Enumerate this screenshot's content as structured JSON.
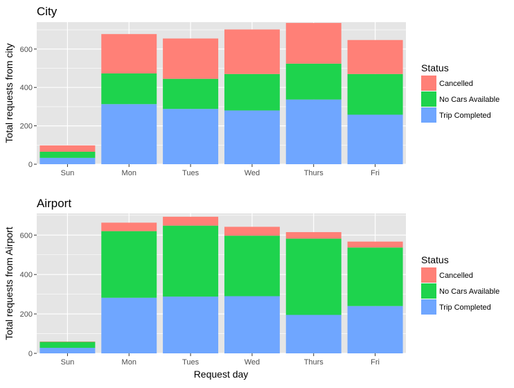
{
  "figure": {
    "xlabel": "Request day"
  },
  "colors": {
    "panel_bg": "#E5E5E5",
    "grid": "#FFFFFF",
    "text": "#000000",
    "tick_text": "#4D4D4D",
    "tick_mark": "#333333"
  },
  "chart_data": [
    {
      "type": "bar",
      "stacked": true,
      "title": "City",
      "xlabel": "",
      "ylabel": "Total requests from city",
      "categories": [
        "Sun",
        "Mon",
        "Tues",
        "Wed",
        "Thurs",
        "Fri"
      ],
      "ylim": [
        0,
        740
      ],
      "yticks": [
        0,
        200,
        400,
        600
      ],
      "grid": true,
      "legend": {
        "title": "Status",
        "position": "right"
      },
      "series": [
        {
          "name": "Trip Completed",
          "color": "#6FA6FF",
          "values": [
            33,
            313,
            288,
            280,
            337,
            258
          ]
        },
        {
          "name": "No Cars Available",
          "color": "#1ED34D",
          "values": [
            32,
            160,
            157,
            190,
            187,
            212
          ]
        },
        {
          "name": "Cancelled",
          "color": "#FF8077",
          "values": [
            33,
            205,
            210,
            232,
            212,
            177
          ]
        }
      ]
    },
    {
      "type": "bar",
      "stacked": true,
      "title": "Airport",
      "xlabel": "Request day",
      "ylabel": "Total requests from Airport",
      "categories": [
        "Sun",
        "Mon",
        "Tues",
        "Wed",
        "Thurs",
        "Fri"
      ],
      "ylim": [
        0,
        710
      ],
      "yticks": [
        0,
        200,
        400,
        600
      ],
      "grid": true,
      "legend": {
        "title": "Status",
        "position": "right"
      },
      "series": [
        {
          "name": "Trip Completed",
          "color": "#6FA6FF",
          "values": [
            28,
            282,
            288,
            290,
            195,
            240
          ]
        },
        {
          "name": "No Cars Available",
          "color": "#1ED34D",
          "values": [
            30,
            338,
            360,
            307,
            387,
            297
          ]
        },
        {
          "name": "Cancelled",
          "color": "#FF8077",
          "values": [
            2,
            43,
            45,
            45,
            33,
            30
          ]
        }
      ]
    }
  ]
}
